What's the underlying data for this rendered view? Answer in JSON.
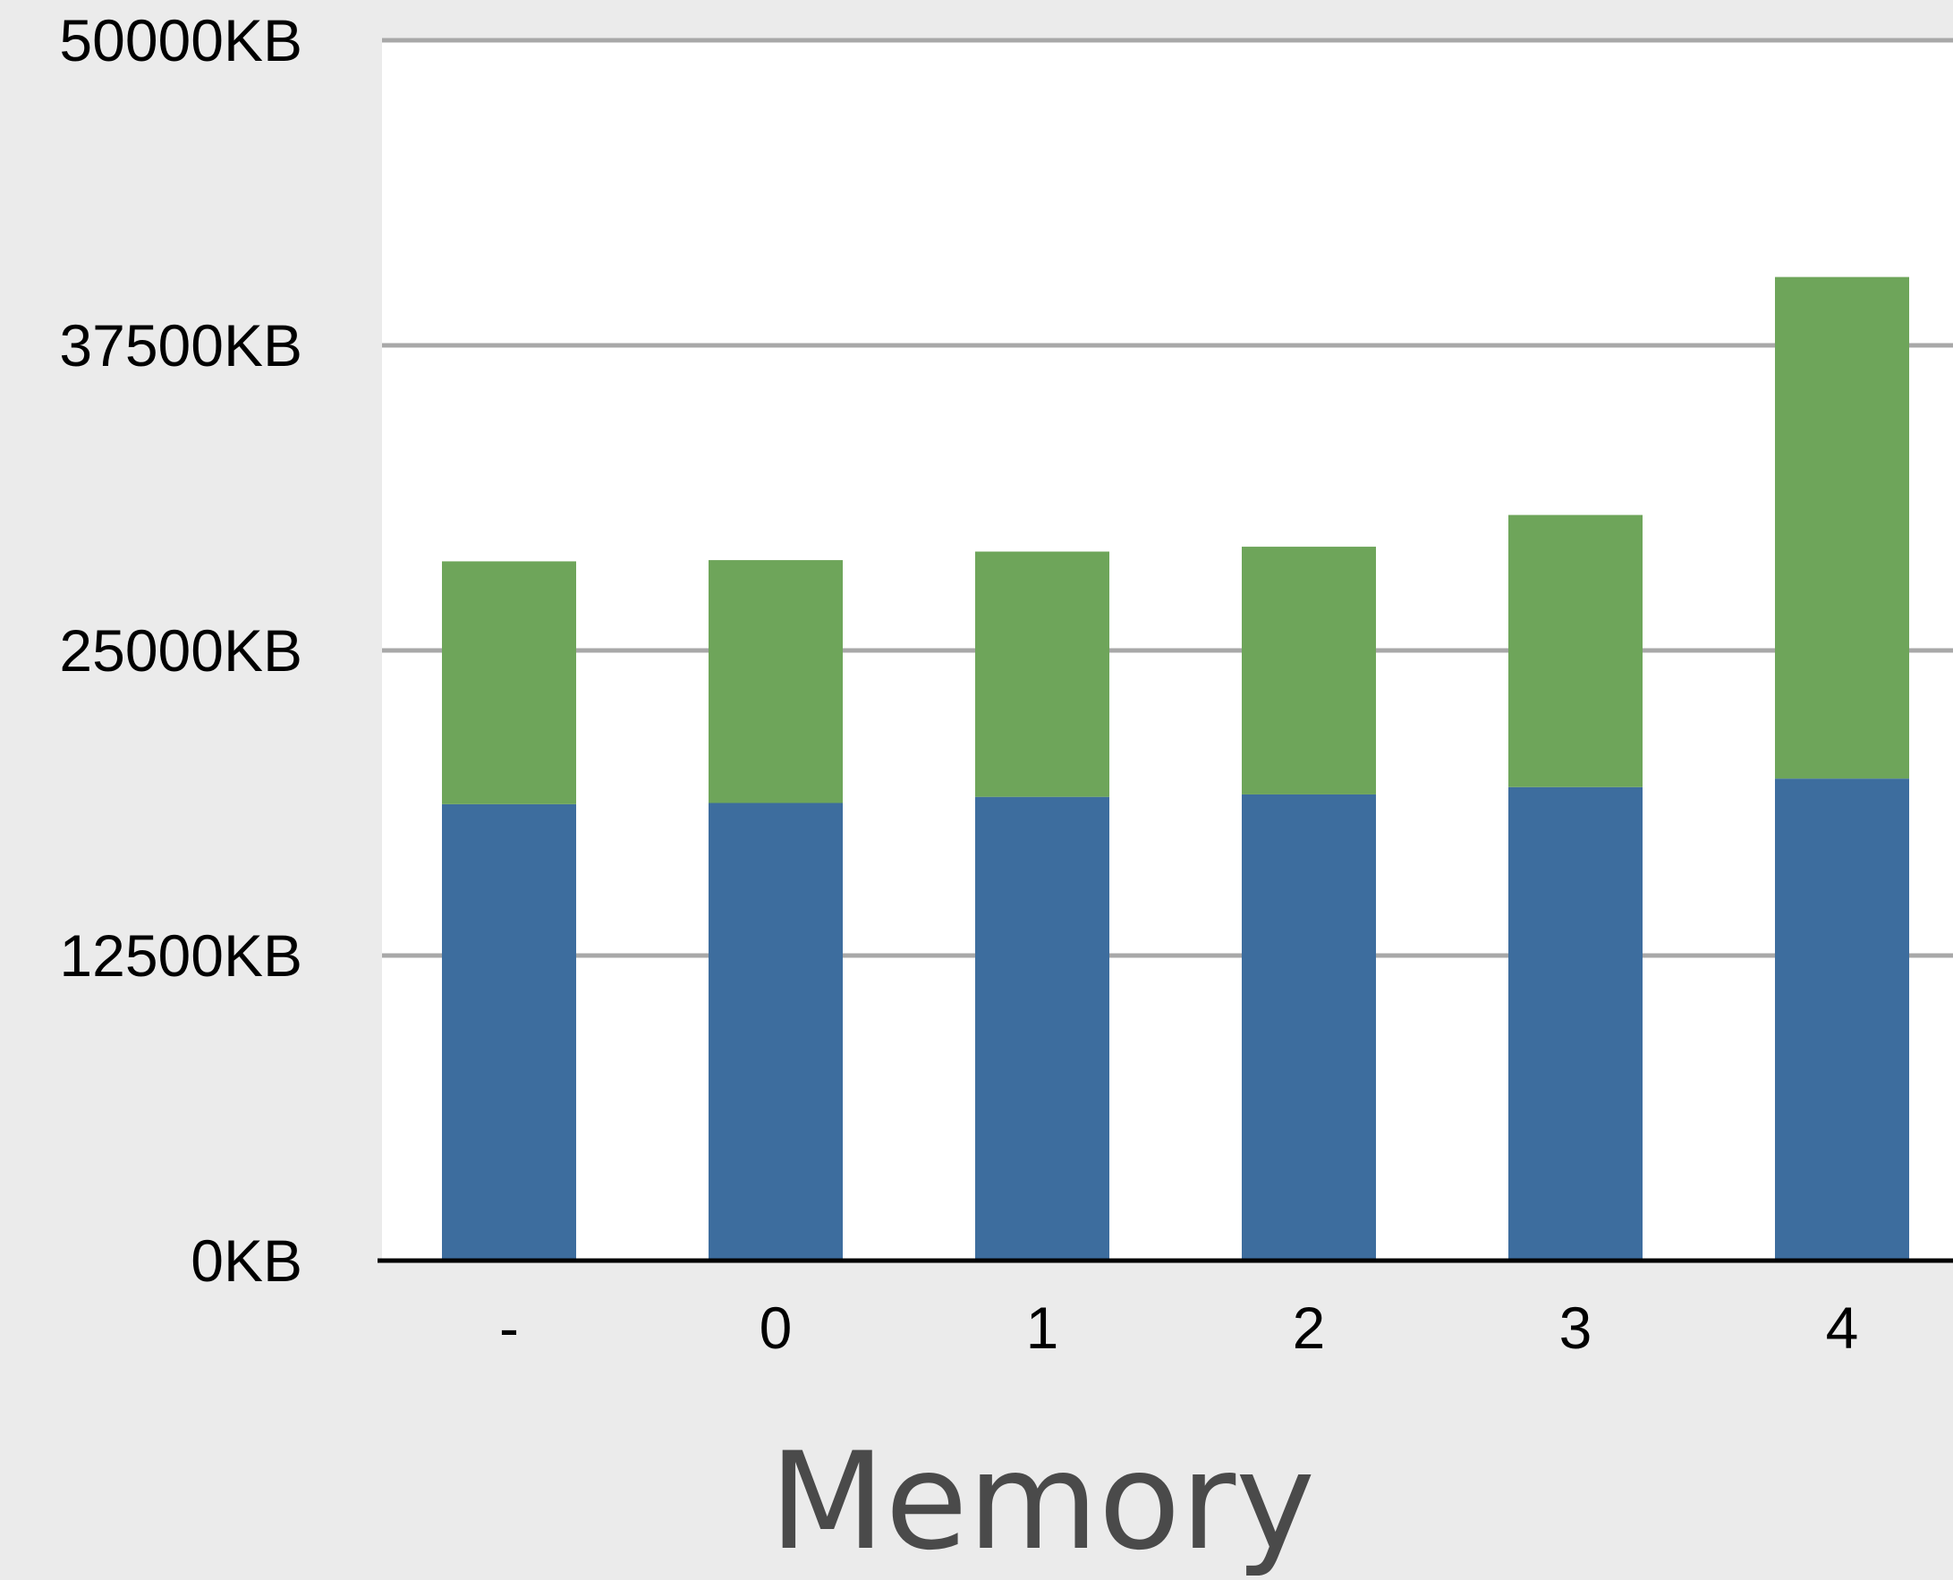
{
  "chart_data": {
    "type": "bar",
    "stacked": true,
    "categories": [
      "-",
      "0",
      "1",
      "2",
      "3",
      "4"
    ],
    "series": [
      {
        "values": [
          18700,
          18750,
          19000,
          19100,
          19400,
          19750
        ],
        "color": "#3d6d9e"
      },
      {
        "values": [
          9950,
          9950,
          10050,
          10150,
          11150,
          20550
        ],
        "color": "#6ea55a"
      }
    ],
    "xlabel": "Memory",
    "ylabel": "",
    "ylim": [
      0,
      50000
    ],
    "yticks": [
      0,
      12500,
      25000,
      37500,
      50000
    ],
    "ytick_labels": [
      "0KB",
      "12500KB",
      "25000KB",
      "37500KB",
      "50000KB"
    ],
    "grid": true,
    "legend": "none",
    "colors": {
      "plot_background": "#ffffff",
      "page_background": "#ebebeb",
      "gridline": "#a8a8a8",
      "axis": "#000000"
    }
  }
}
